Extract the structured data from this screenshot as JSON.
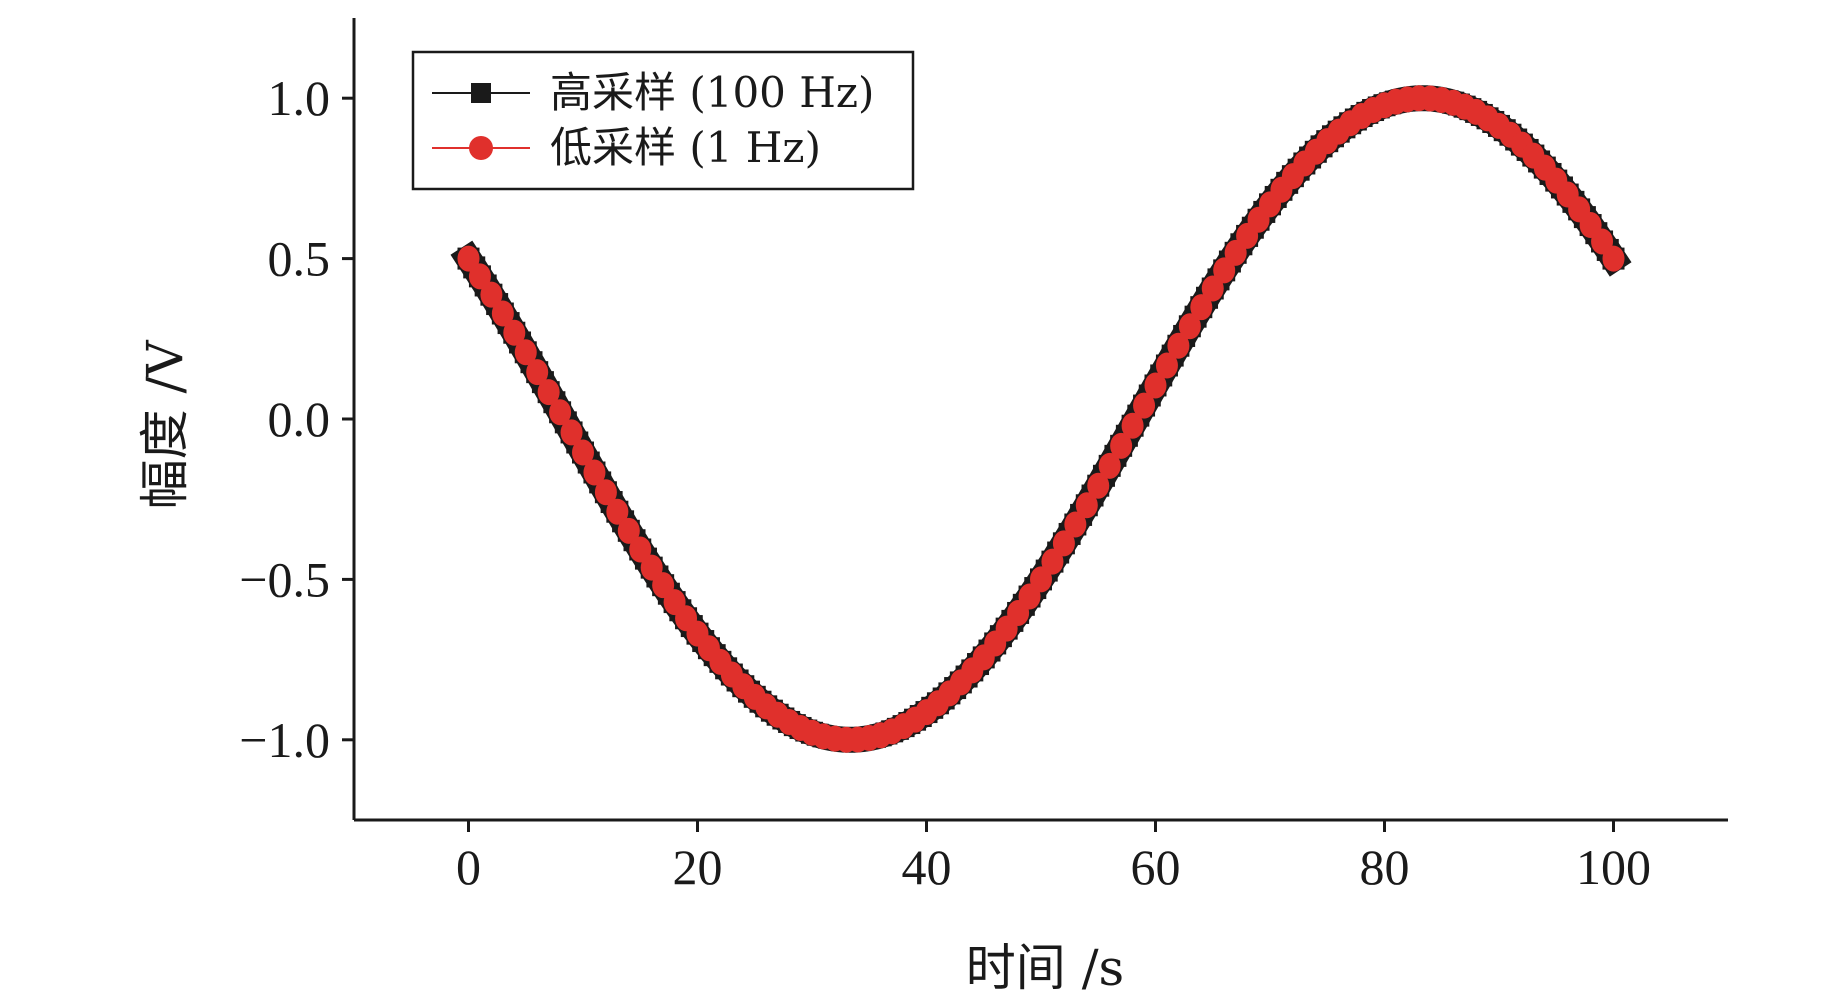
{
  "chart_data": {
    "type": "line",
    "xlabel": "时间 /s",
    "ylabel": "幅度 /V",
    "xlim": [
      -10,
      110
    ],
    "ylim": [
      -1.25,
      1.25
    ],
    "x_ticks": [
      0,
      20,
      40,
      60,
      80,
      100
    ],
    "x_tick_labels": [
      "0",
      "20",
      "40",
      "60",
      "80",
      "100"
    ],
    "y_ticks": [
      -1.0,
      -0.5,
      0.0,
      0.5,
      1.0
    ],
    "y_tick_labels": [
      "−1.0",
      "−0.5",
      "0.0",
      "0.5",
      "1.0"
    ],
    "grid": false,
    "legend_position": "top-left",
    "function": "sin(2*pi*x/100 + 5*pi/6)",
    "series": [
      {
        "name": "高采样 (100 Hz)",
        "color": "#1a1a1a",
        "marker": "square",
        "sample_interval": 0.01,
        "x_range": [
          0,
          100
        ]
      },
      {
        "name": "低采样 (1 Hz)",
        "color": "#e0302c",
        "marker": "circle",
        "sample_interval": 1,
        "x_range": [
          0,
          100
        ]
      }
    ]
  }
}
